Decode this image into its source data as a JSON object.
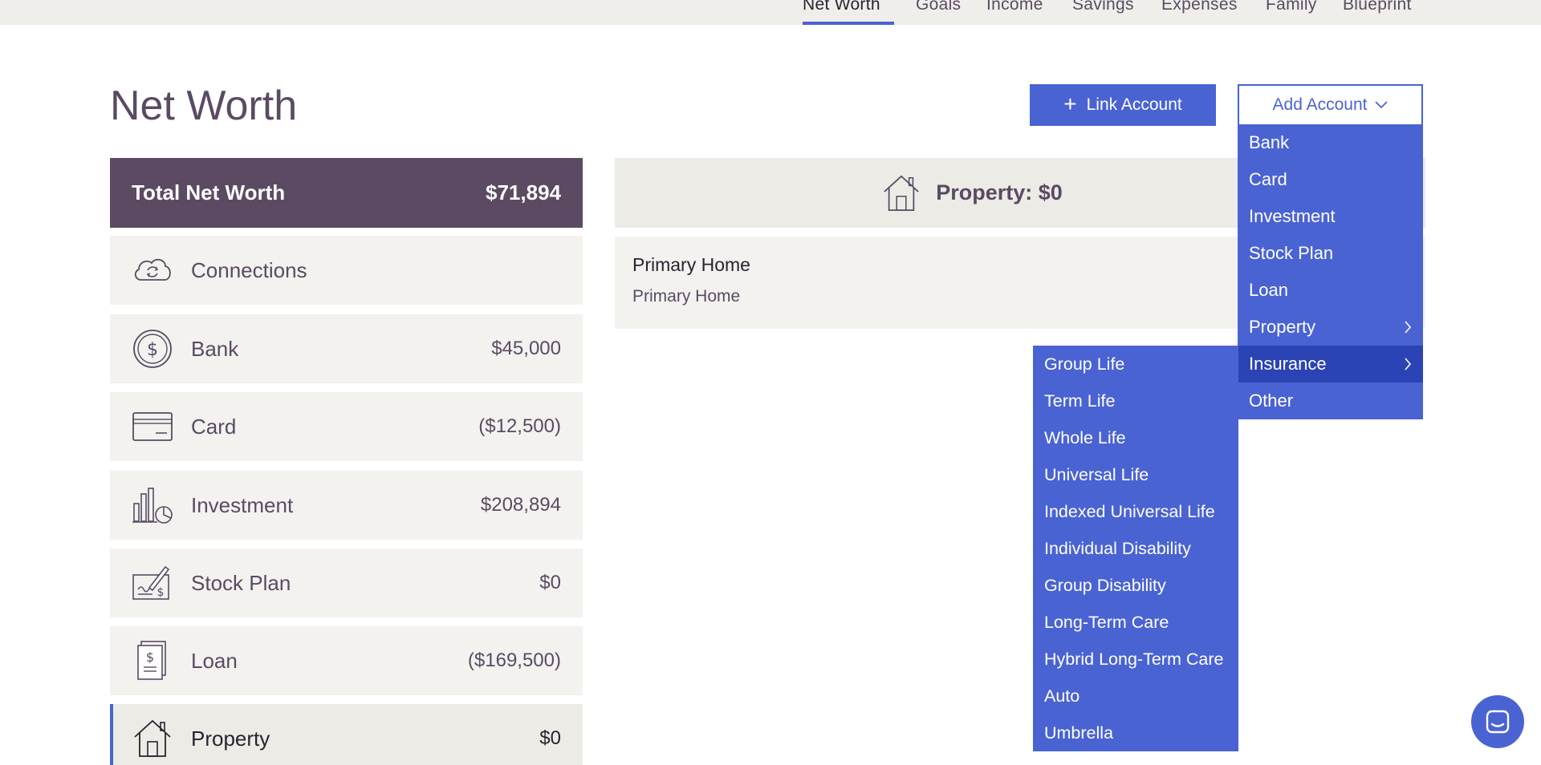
{
  "nav": {
    "tabs": [
      "Net Worth",
      "Goals",
      "Income",
      "Savings",
      "Expenses",
      "Family",
      "Blueprint"
    ],
    "active": "Net Worth"
  },
  "page": {
    "title": "Net Worth"
  },
  "actions": {
    "link_account": "Link Account",
    "add_account": "Add Account"
  },
  "summary": {
    "label": "Total Net Worth",
    "value": "$71,894"
  },
  "accounts": [
    {
      "name": "Connections",
      "value": "",
      "icon": "cloud-sync-icon"
    },
    {
      "name": "Bank",
      "value": "$45,000",
      "icon": "dollar-coin-icon"
    },
    {
      "name": "Card",
      "value": "($12,500)",
      "icon": "credit-card-icon"
    },
    {
      "name": "Investment",
      "value": "$208,894",
      "icon": "investment-chart-icon"
    },
    {
      "name": "Stock Plan",
      "value": "$0",
      "icon": "signed-check-icon"
    },
    {
      "name": "Loan",
      "value": "($169,500)",
      "icon": "loan-document-icon"
    },
    {
      "name": "Property",
      "value": "$0",
      "icon": "house-icon"
    }
  ],
  "property_panel": {
    "header": "Property: $0",
    "items": [
      {
        "title": "Primary Home",
        "subtitle": "Primary Home"
      }
    ]
  },
  "add_menu": {
    "items": [
      "Bank",
      "Card",
      "Investment",
      "Stock Plan",
      "Loan",
      "Property",
      "Insurance",
      "Other"
    ],
    "with_submenu": [
      "Property",
      "Insurance"
    ],
    "active": "Insurance"
  },
  "insurance_submenu": [
    "Group Life",
    "Term Life",
    "Whole Life",
    "Universal Life",
    "Indexed Universal Life",
    "Individual Disability",
    "Group Disability",
    "Long-Term Care",
    "Hybrid Long-Term Care",
    "Auto",
    "Umbrella"
  ],
  "colors": {
    "accent": "#4a63d3",
    "accent_dark": "#2b44b5",
    "brand": "#5c4a63",
    "panel": "#f3f2ef"
  }
}
